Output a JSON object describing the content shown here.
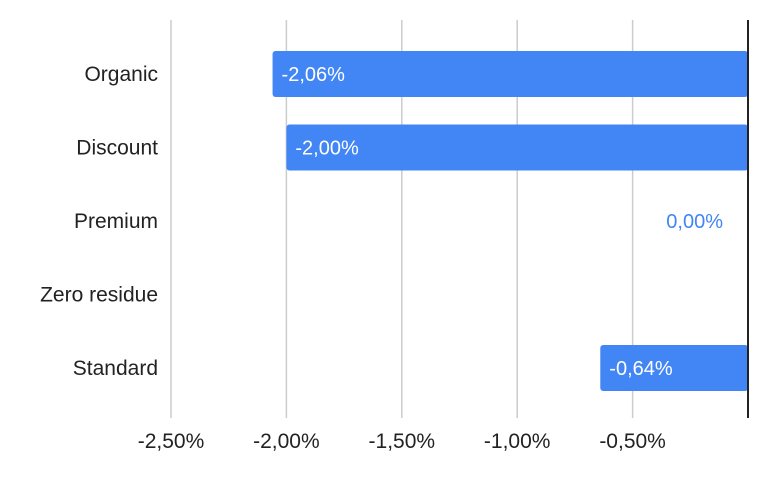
{
  "chart_data": {
    "type": "bar",
    "orientation": "horizontal",
    "categories": [
      "Organic",
      "Discount",
      "Premium",
      "Zero residue",
      "Standard"
    ],
    "values": [
      -2.06,
      -2.0,
      0.0,
      null,
      -0.64
    ],
    "data_labels": [
      "-2,06%",
      "-2,00%",
      "0,00%",
      "",
      "-0,64%"
    ],
    "x_ticks": [
      -2.5,
      -2.0,
      -1.5,
      -1.0,
      -0.5
    ],
    "x_tick_labels": [
      "-2,50%",
      "-2,00%",
      "-1,50%",
      "-1,00%",
      "-0,50%"
    ],
    "xlim": [
      -2.5,
      0
    ],
    "title": "",
    "xlabel": "",
    "ylabel": "",
    "grid": "vertical",
    "legend": "none",
    "bar_color": "#4285f4",
    "grid_color": "#cccccc",
    "axis_color": "#222222"
  }
}
